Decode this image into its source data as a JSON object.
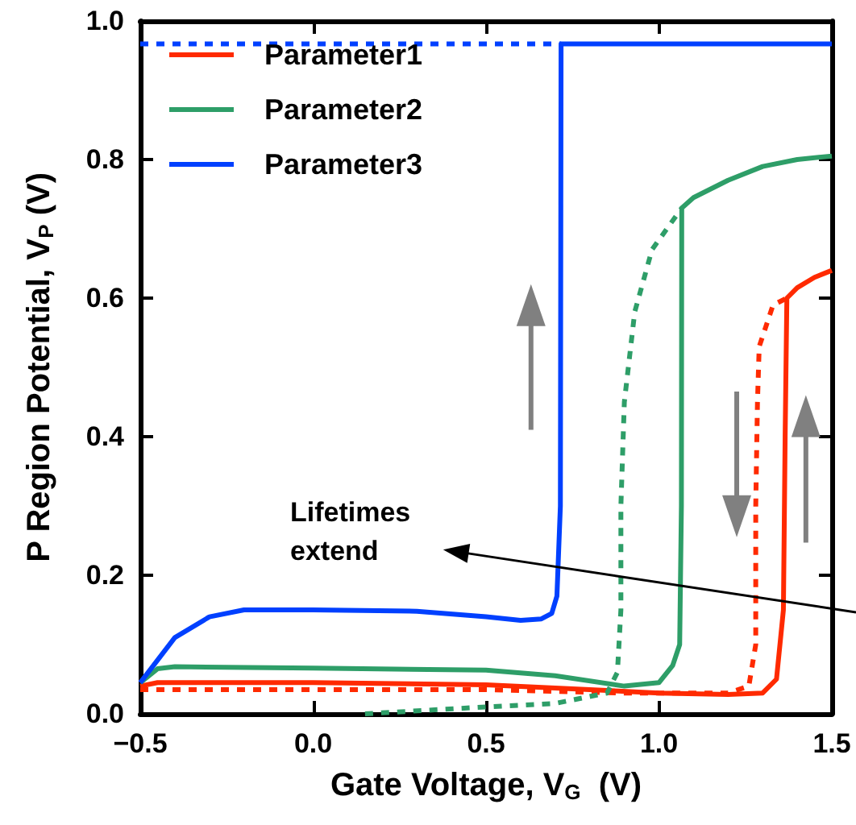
{
  "chart_data": {
    "type": "line",
    "xlabel": "Gate Voltage, V$_{G}$  (V)",
    "ylabel": "P Region Potential, V$_{P}$ (V)",
    "xlim": [
      -0.5,
      1.5
    ],
    "xticks": [
      {
        "value": -0.5,
        "label": "−0.5"
      },
      {
        "value": 0,
        "label": "0.0"
      },
      {
        "value": 0.5,
        "label": "0.5"
      },
      {
        "value": 1,
        "label": "1.0"
      },
      {
        "value": 1.5,
        "label": "1.5"
      }
    ],
    "ylim": [
      0,
      1
    ],
    "yticks": [
      {
        "value": 0,
        "label": "0.0"
      },
      {
        "value": 0.2,
        "label": "0.2"
      },
      {
        "value": 0.4,
        "label": "0.4"
      },
      {
        "value": 0.6,
        "label": "0.6"
      },
      {
        "value": 0.8,
        "label": "0.8"
      },
      {
        "value": 1,
        "label": "1.0"
      }
    ],
    "grid": false,
    "legend": "top left",
    "marker": "none",
    "annotations": [
      "Lifetimes extend"
    ],
    "series": [
      {
        "name": "Parameter1",
        "color": "#ff2a00",
        "line_style": "solid",
        "x": [
          -0.5,
          -0.45,
          0,
          0.5,
          0.8,
          1.0,
          1.2,
          1.3,
          1.34,
          1.36,
          1.365,
          1.37,
          1.4,
          1.45,
          1.5
        ],
        "values": [
          0.04,
          0.045,
          0.045,
          0.042,
          0.035,
          0.03,
          0.028,
          0.03,
          0.05,
          0.15,
          0.4,
          0.6,
          0.615,
          0.63,
          0.64
        ]
      },
      {
        "color": "#ff2a00",
        "line_style": "dashed",
        "x": [
          -0.5,
          0,
          0.5,
          0.9,
          1.2,
          1.26,
          1.28,
          1.28,
          1.285,
          1.29,
          1.33,
          1.37
        ],
        "values": [
          0.035,
          0.035,
          0.035,
          0.03,
          0.03,
          0.04,
          0.1,
          0.3,
          0.45,
          0.53,
          0.59,
          0.6
        ]
      },
      {
        "name": "Parameter2",
        "color": "#2e9e68",
        "line_style": "solid",
        "x": [
          -0.5,
          -0.45,
          -0.4,
          0,
          0.5,
          0.7,
          0.9,
          1.0,
          1.04,
          1.06,
          1.065,
          1.066,
          1.1,
          1.2,
          1.3,
          1.4,
          1.5
        ],
        "values": [
          0.045,
          0.065,
          0.068,
          0.066,
          0.063,
          0.055,
          0.04,
          0.045,
          0.07,
          0.1,
          0.3,
          0.73,
          0.745,
          0.77,
          0.79,
          0.8,
          0.805
        ]
      },
      {
        "color": "#2e9e68",
        "line_style": "dashed",
        "x": [
          0.15,
          0.5,
          0.7,
          0.85,
          0.88,
          0.89,
          0.89,
          0.9,
          0.93,
          0.98,
          1.066
        ],
        "values": [
          0.0,
          0.01,
          0.015,
          0.03,
          0.06,
          0.15,
          0.3,
          0.45,
          0.58,
          0.67,
          0.73
        ]
      },
      {
        "name": "Parameter3",
        "color": "#0040ff",
        "line_style": "solid",
        "x": [
          -0.5,
          -0.4,
          -0.3,
          -0.2,
          0,
          0.3,
          0.5,
          0.6,
          0.66,
          0.69,
          0.705,
          0.715,
          0.717,
          1.0,
          1.5
        ],
        "values": [
          0.045,
          0.11,
          0.14,
          0.15,
          0.15,
          0.148,
          0.14,
          0.135,
          0.137,
          0.145,
          0.17,
          0.3,
          0.967,
          0.967,
          0.967
        ]
      },
      {
        "color": "#0040ff",
        "line_style": "dashed",
        "x": [
          -0.5,
          0.717
        ],
        "values": [
          0.967,
          0.967
        ]
      }
    ]
  }
}
